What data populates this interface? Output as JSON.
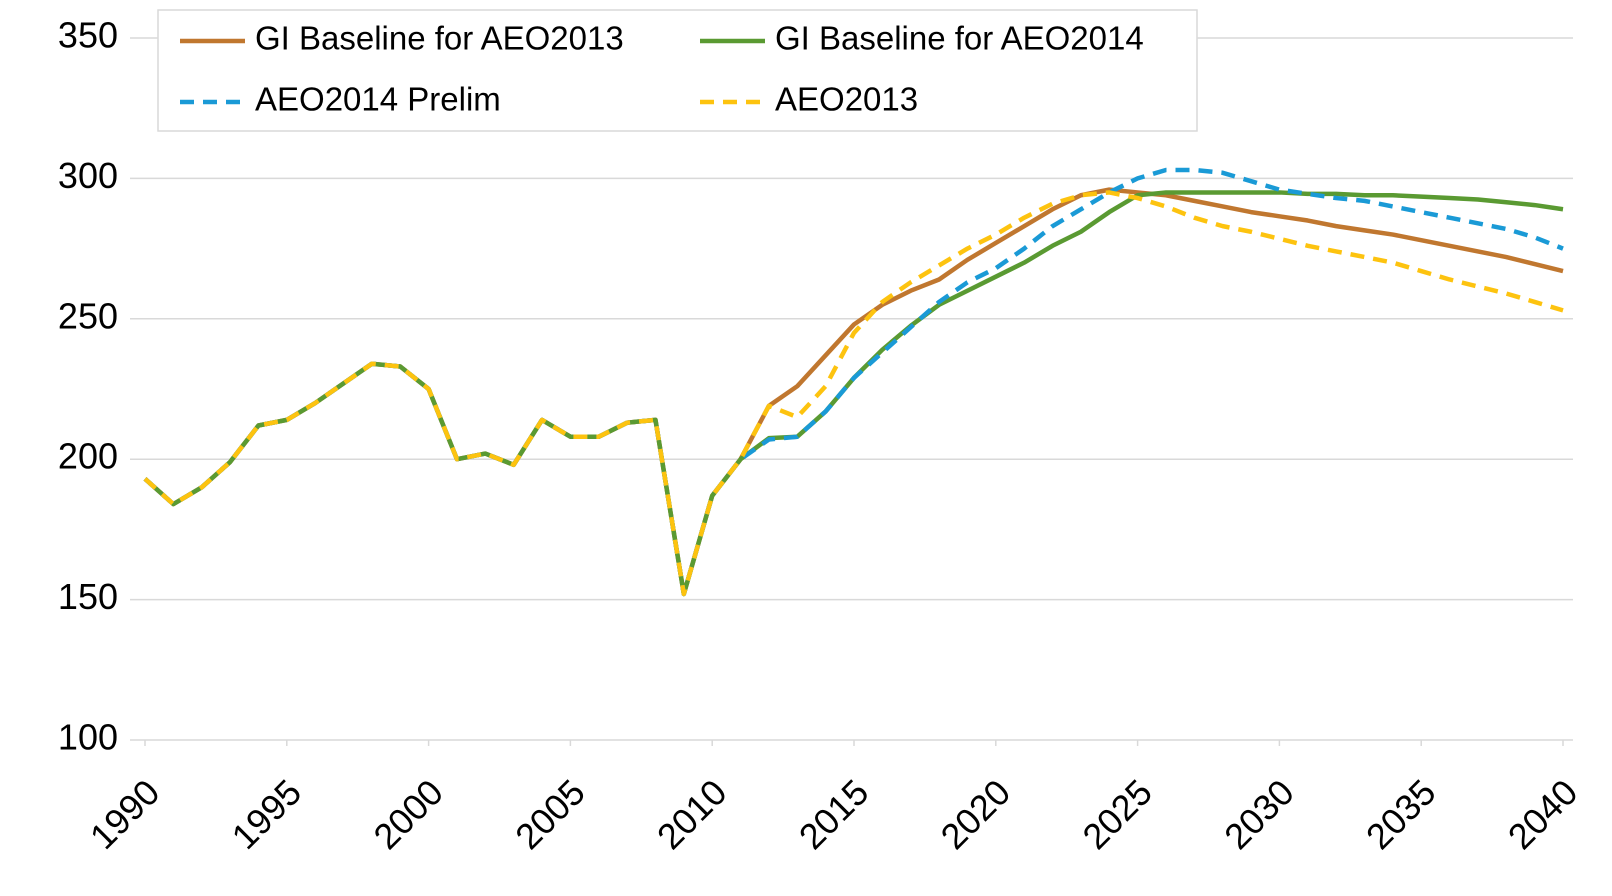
{
  "chart_data": {
    "type": "line",
    "x": [
      1990,
      1991,
      1992,
      1993,
      1994,
      1995,
      1996,
      1997,
      1998,
      1999,
      2000,
      2001,
      2002,
      2003,
      2004,
      2005,
      2006,
      2007,
      2008,
      2009,
      2010,
      2011,
      2012,
      2013,
      2014,
      2015,
      2016,
      2017,
      2018,
      2019,
      2020,
      2021,
      2022,
      2023,
      2024,
      2025,
      2026,
      2027,
      2028,
      2029,
      2030,
      2031,
      2032,
      2033,
      2034,
      2035,
      2036,
      2037,
      2038,
      2039,
      2040
    ],
    "series": [
      {
        "name": "GI Baseline for AEO2013",
        "color": "#c0772f",
        "dashed": false,
        "values": [
          193,
          184,
          190,
          199,
          212,
          214,
          220,
          227,
          234,
          233,
          225,
          200,
          202,
          198,
          214,
          208,
          208,
          213,
          214,
          152,
          187,
          200,
          219,
          226,
          237,
          248,
          255,
          260,
          264,
          271,
          277,
          283,
          289,
          294,
          296,
          295,
          294,
          292,
          290,
          288,
          286.5,
          285,
          283,
          281.5,
          280,
          278,
          276,
          274,
          272,
          269.5,
          267
        ]
      },
      {
        "name": "GI Baseline for AEO2014",
        "color": "#5a9a32",
        "dashed": false,
        "values": [
          193,
          184,
          190,
          199,
          212,
          214,
          220,
          227,
          234,
          233,
          225,
          200,
          202,
          198,
          214,
          208,
          208,
          213,
          214,
          152,
          187,
          200,
          207.5,
          208,
          217,
          229,
          239,
          247.5,
          255,
          260,
          265,
          270,
          276,
          281,
          288,
          294,
          295,
          295,
          295,
          295,
          295,
          294.5,
          294.5,
          294,
          294,
          293.5,
          293,
          292.5,
          291.5,
          290.5,
          289
        ]
      },
      {
        "name": "AEO2014 Prelim",
        "color": "#1a9ad6",
        "dashed": true,
        "values": [
          193,
          184,
          190,
          199,
          212,
          214,
          220,
          227,
          234,
          233,
          225,
          200,
          202,
          198,
          214,
          208,
          208,
          213,
          214,
          152,
          187,
          200,
          207,
          208,
          217,
          229,
          238,
          247,
          256,
          263,
          268,
          275,
          283,
          289,
          295,
          300,
          303,
          303,
          302,
          299,
          296,
          294.5,
          293,
          292,
          290,
          288,
          286,
          284,
          282,
          279,
          275
        ]
      },
      {
        "name": "AEO2013",
        "color": "#fdc30f",
        "dashed": true,
        "values": [
          193,
          184,
          190,
          199,
          212,
          214,
          220,
          227,
          234,
          233,
          225,
          200,
          202,
          198,
          214,
          208,
          208,
          213,
          214,
          152,
          187,
          200,
          219,
          215,
          226,
          245,
          256,
          263,
          269,
          275,
          280,
          286,
          291,
          294,
          295,
          293,
          290,
          286,
          283,
          281,
          278.5,
          276,
          274,
          272,
          270,
          267,
          264,
          261.5,
          259,
          256,
          253
        ]
      }
    ],
    "xlim": [
      1990,
      2040
    ],
    "xticks": [
      1990,
      1995,
      2000,
      2005,
      2010,
      2015,
      2020,
      2025,
      2030,
      2035,
      2040
    ],
    "ylim": [
      100,
      350
    ],
    "yticks": [
      100,
      150,
      200,
      250,
      300,
      350
    ],
    "grid": true,
    "legend": "top"
  }
}
